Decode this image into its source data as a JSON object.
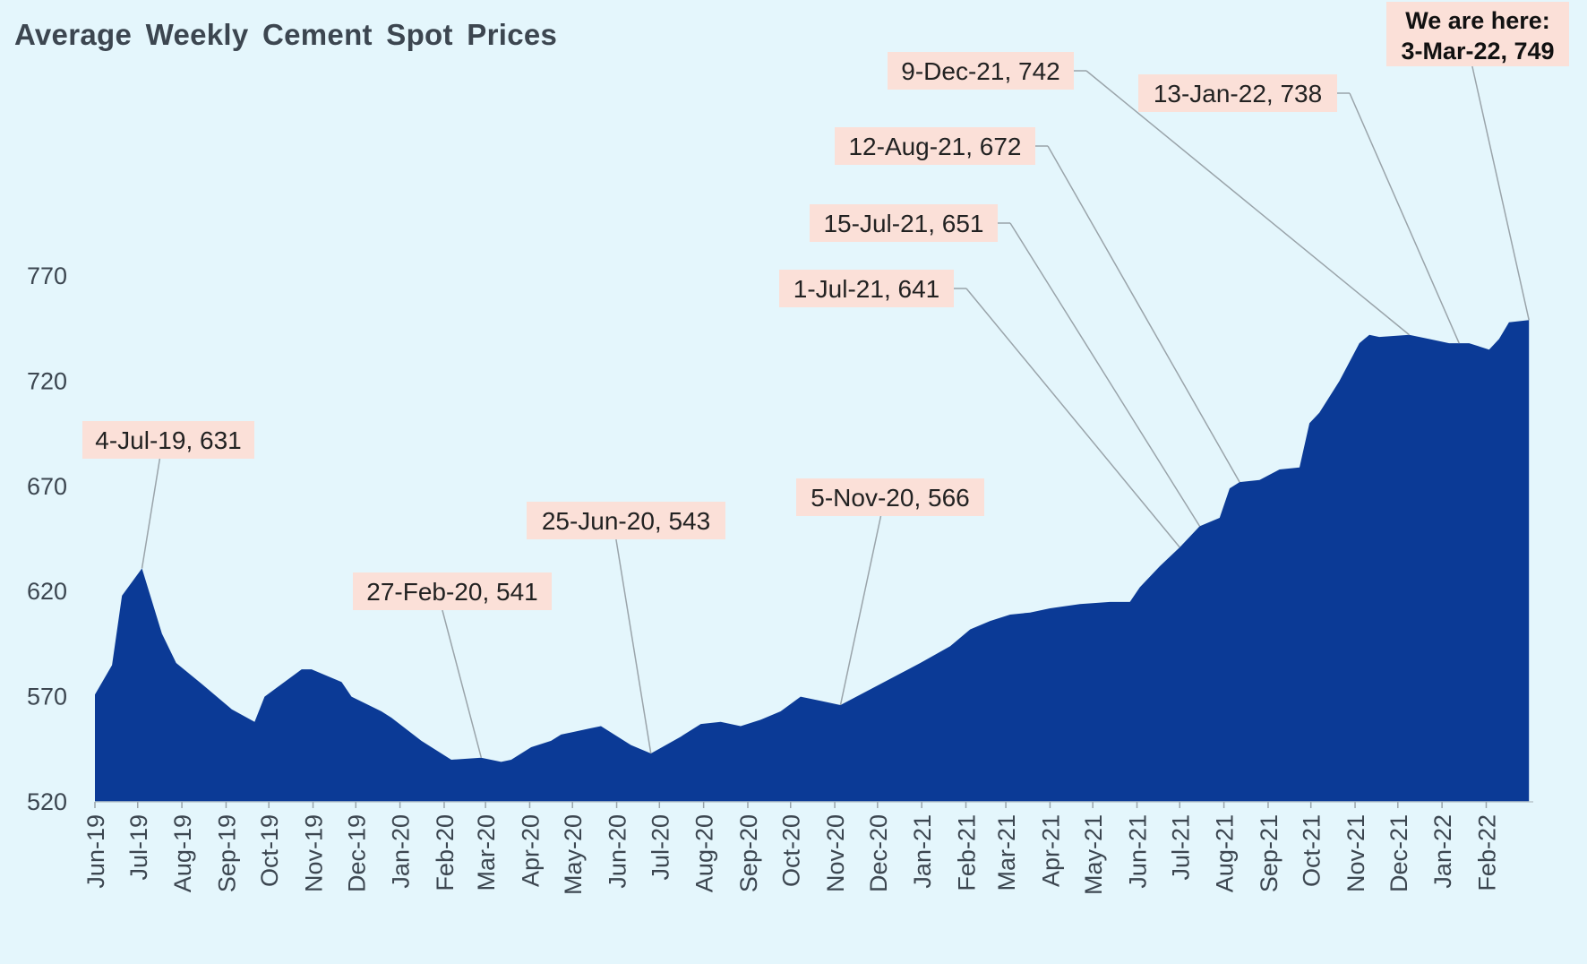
{
  "chart_data": {
    "type": "area",
    "title": "Average Weekly Cement Spot Prices",
    "xlabel": "",
    "ylabel": "",
    "ylim": [
      520,
      770
    ],
    "yticks": [
      520,
      570,
      620,
      670,
      720,
      770
    ],
    "xlim": [
      "2019-06-01",
      "2022-03-06"
    ],
    "xticks": [
      {
        "label": "Jun-19",
        "date": "2019-06-01"
      },
      {
        "label": "Jul-19",
        "date": "2019-07-01"
      },
      {
        "label": "Aug-19",
        "date": "2019-08-01"
      },
      {
        "label": "Sep-19",
        "date": "2019-09-01"
      },
      {
        "label": "Oct-19",
        "date": "2019-10-01"
      },
      {
        "label": "Nov-19",
        "date": "2019-11-01"
      },
      {
        "label": "Dec-19",
        "date": "2019-12-01"
      },
      {
        "label": "Jan-20",
        "date": "2020-01-01"
      },
      {
        "label": "Feb-20",
        "date": "2020-02-01"
      },
      {
        "label": "Mar-20",
        "date": "2020-03-01"
      },
      {
        "label": "Apr-20",
        "date": "2020-04-01"
      },
      {
        "label": "May-20",
        "date": "2020-05-01"
      },
      {
        "label": "Jun-20",
        "date": "2020-06-01"
      },
      {
        "label": "Jul-20",
        "date": "2020-07-01"
      },
      {
        "label": "Aug-20",
        "date": "2020-08-01"
      },
      {
        "label": "Sep-20",
        "date": "2020-09-01"
      },
      {
        "label": "Oct-20",
        "date": "2020-10-01"
      },
      {
        "label": "Nov-20",
        "date": "2020-11-01"
      },
      {
        "label": "Dec-20",
        "date": "2020-12-01"
      },
      {
        "label": "Jan-21",
        "date": "2021-01-01"
      },
      {
        "label": "Feb-21",
        "date": "2021-02-01"
      },
      {
        "label": "Mar-21",
        "date": "2021-03-01"
      },
      {
        "label": "Apr-21",
        "date": "2021-04-01"
      },
      {
        "label": "May-21",
        "date": "2021-05-01"
      },
      {
        "label": "Jun-21",
        "date": "2021-06-01"
      },
      {
        "label": "Jul-21",
        "date": "2021-07-01"
      },
      {
        "label": "Aug-21",
        "date": "2021-08-01"
      },
      {
        "label": "Sep-21",
        "date": "2021-09-01"
      },
      {
        "label": "Oct-21",
        "date": "2021-10-01"
      },
      {
        "label": "Nov-21",
        "date": "2021-11-01"
      },
      {
        "label": "Dec-21",
        "date": "2021-12-01"
      },
      {
        "label": "Jan-22",
        "date": "2022-01-01"
      },
      {
        "label": "Feb-22",
        "date": "2022-02-01"
      }
    ],
    "grid": false,
    "legend": "none",
    "color": "#0b3a96",
    "series": [
      {
        "points": [
          [
            "2019-06-01",
            571
          ],
          [
            "2019-06-13",
            585
          ],
          [
            "2019-06-20",
            618
          ],
          [
            "2019-07-04",
            631
          ],
          [
            "2019-07-18",
            600
          ],
          [
            "2019-07-28",
            586
          ],
          [
            "2019-08-15",
            576
          ],
          [
            "2019-09-05",
            564
          ],
          [
            "2019-09-21",
            558
          ],
          [
            "2019-09-28",
            570
          ],
          [
            "2019-10-24",
            583
          ],
          [
            "2019-10-31",
            583
          ],
          [
            "2019-11-21",
            577
          ],
          [
            "2019-11-28",
            570
          ],
          [
            "2019-12-19",
            563
          ],
          [
            "2019-12-26",
            560
          ],
          [
            "2020-01-16",
            549
          ],
          [
            "2020-02-06",
            540
          ],
          [
            "2020-02-27",
            541
          ],
          [
            "2020-03-12",
            539
          ],
          [
            "2020-03-19",
            540
          ],
          [
            "2020-04-02",
            546
          ],
          [
            "2020-04-16",
            549
          ],
          [
            "2020-04-23",
            552
          ],
          [
            "2020-05-14",
            555
          ],
          [
            "2020-05-21",
            556
          ],
          [
            "2020-06-11",
            547
          ],
          [
            "2020-06-25",
            543
          ],
          [
            "2020-07-16",
            551
          ],
          [
            "2020-07-30",
            557
          ],
          [
            "2020-08-13",
            558
          ],
          [
            "2020-08-27",
            556
          ],
          [
            "2020-09-10",
            559
          ],
          [
            "2020-09-24",
            563
          ],
          [
            "2020-10-08",
            570
          ],
          [
            "2020-10-22",
            568
          ],
          [
            "2020-11-05",
            566
          ],
          [
            "2020-11-19",
            571
          ],
          [
            "2020-12-03",
            576
          ],
          [
            "2020-12-17",
            581
          ],
          [
            "2020-12-31",
            586
          ],
          [
            "2021-01-21",
            594
          ],
          [
            "2021-02-04",
            602
          ],
          [
            "2021-02-18",
            606
          ],
          [
            "2021-03-04",
            609
          ],
          [
            "2021-03-18",
            610
          ],
          [
            "2021-04-01",
            612
          ],
          [
            "2021-04-22",
            614
          ],
          [
            "2021-05-13",
            615
          ],
          [
            "2021-05-27",
            615
          ],
          [
            "2021-06-03",
            622
          ],
          [
            "2021-06-17",
            632
          ],
          [
            "2021-07-01",
            641
          ],
          [
            "2021-07-15",
            651
          ],
          [
            "2021-07-29",
            655
          ],
          [
            "2021-08-05",
            669
          ],
          [
            "2021-08-12",
            672
          ],
          [
            "2021-08-26",
            673
          ],
          [
            "2021-09-09",
            678
          ],
          [
            "2021-09-23",
            679
          ],
          [
            "2021-09-30",
            700
          ],
          [
            "2021-10-07",
            705
          ],
          [
            "2021-10-21",
            720
          ],
          [
            "2021-11-04",
            738
          ],
          [
            "2021-11-11",
            742
          ],
          [
            "2021-11-18",
            741
          ],
          [
            "2021-12-09",
            742
          ],
          [
            "2021-12-23",
            740
          ],
          [
            "2022-01-06",
            738
          ],
          [
            "2022-01-20",
            738
          ],
          [
            "2022-02-03",
            735
          ],
          [
            "2022-02-10",
            740
          ],
          [
            "2022-02-17",
            748
          ],
          [
            "2022-03-03",
            749
          ]
        ]
      }
    ],
    "annotations": [
      {
        "text": "4-Jul-19, 631",
        "date": "2019-07-04",
        "value": 631
      },
      {
        "text": "27-Feb-20, 541",
        "date": "2020-02-27",
        "value": 541
      },
      {
        "text": "25-Jun-20, 543",
        "date": "2020-06-25",
        "value": 543
      },
      {
        "text": "5-Nov-20, 566",
        "date": "2020-11-05",
        "value": 566
      },
      {
        "text": "1-Jul-21, 641",
        "date": "2021-07-01",
        "value": 641
      },
      {
        "text": "15-Jul-21, 651",
        "date": "2021-07-15",
        "value": 651
      },
      {
        "text": "12-Aug-21, 672",
        "date": "2021-08-12",
        "value": 672
      },
      {
        "text": "9-Dec-21, 742",
        "date": "2021-12-09",
        "value": 742
      },
      {
        "text": "13-Jan-22, 738",
        "date": "2022-01-13",
        "value": 738
      },
      {
        "text": [
          "We are here:",
          "3-Mar-22, 749"
        ],
        "date": "2022-03-03",
        "value": 749,
        "bold": true
      }
    ]
  },
  "colors": {
    "background": "#e4f6fc",
    "area": "#0b3a96",
    "annotation_box": "#fbe0d8",
    "leader_line": "#9aa4aa",
    "text": "#3c4650"
  }
}
